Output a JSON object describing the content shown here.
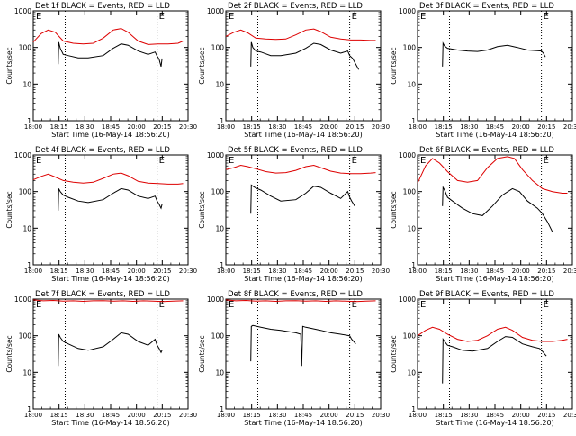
{
  "figure": {
    "start_time_label": "Start Time (16-May-14 18:56:20)",
    "ylabel": "Counts/sec",
    "marker": "E",
    "colors": {
      "events": "#000000",
      "lld": "#dd0000"
    }
  },
  "chart_data": [
    {
      "type": "line",
      "title": "Det 1f BLACK = Events, RED = LLD",
      "yscale": "log",
      "ylim": [
        1,
        1000
      ],
      "x_tick_labels": [
        "18:00",
        "18:15",
        "18:30",
        "18:45",
        "20:00",
        "20:15",
        "20:30"
      ],
      "y_tick_labels": [
        "1",
        "10",
        "100",
        "1000"
      ],
      "x_unit": "minutes after 18:00",
      "xlim": [
        0,
        155
      ],
      "event_lines_x": [
        32,
        124
      ],
      "series": [
        {
          "name": "Events",
          "color": "#000000",
          "x": [
            25,
            25.5,
            27,
            30,
            35,
            45,
            55,
            70,
            80,
            88,
            95,
            105,
            115,
            122,
            124,
            126,
            128,
            129
          ],
          "y": [
            35,
            140,
            95,
            65,
            60,
            52,
            52,
            60,
            95,
            125,
            115,
            80,
            65,
            75,
            58,
            48,
            30,
            50
          ]
        },
        {
          "name": "LLD",
          "color": "#dd0000",
          "x": [
            0,
            8,
            15,
            22,
            30,
            40,
            50,
            60,
            70,
            80,
            88,
            95,
            105,
            115,
            125,
            135,
            145,
            150
          ],
          "y": [
            140,
            240,
            300,
            260,
            150,
            130,
            125,
            130,
            180,
            300,
            330,
            260,
            150,
            120,
            125,
            125,
            130,
            150
          ]
        }
      ]
    },
    {
      "type": "line",
      "title": "Det 2f BLACK = Events, RED = LLD",
      "yscale": "log",
      "ylim": [
        1,
        1000
      ],
      "x_tick_labels": [
        "18:00",
        "18:15",
        "18:30",
        "18:45",
        "20:00",
        "20:15",
        "20:30"
      ],
      "y_tick_labels": [
        "1",
        "10",
        "100",
        "1000"
      ],
      "x_unit": "minutes after 18:00",
      "xlim": [
        0,
        155
      ],
      "event_lines_x": [
        32,
        124
      ],
      "series": [
        {
          "name": "Events",
          "color": "#000000",
          "x": [
            25,
            25.5,
            27,
            30,
            35,
            45,
            55,
            70,
            80,
            88,
            95,
            105,
            115,
            122,
            124,
            127,
            130,
            133
          ],
          "y": [
            30,
            140,
            100,
            80,
            75,
            60,
            60,
            70,
            95,
            130,
            120,
            85,
            70,
            80,
            60,
            50,
            35,
            25
          ]
        },
        {
          "name": "LLD",
          "color": "#dd0000",
          "x": [
            0,
            8,
            15,
            22,
            30,
            40,
            50,
            60,
            70,
            80,
            88,
            95,
            105,
            115,
            125,
            135,
            145,
            150
          ],
          "y": [
            200,
            260,
            300,
            250,
            180,
            170,
            165,
            170,
            220,
            300,
            320,
            270,
            190,
            170,
            160,
            160,
            155,
            155
          ]
        }
      ]
    },
    {
      "type": "line",
      "title": "Det 3f BLACK = Events, RED = LLD",
      "yscale": "log",
      "ylim": [
        1,
        1000
      ],
      "x_tick_labels": [
        "18:00",
        "18:15",
        "18:30",
        "18:45",
        "20:00",
        "20:15",
        "20:30"
      ],
      "y_tick_labels": [
        "1",
        "10",
        "100",
        "1000"
      ],
      "x_unit": "minutes after 18:00",
      "xlim": [
        0,
        155
      ],
      "event_lines_x": [
        32,
        124
      ],
      "series": [
        {
          "name": "Events",
          "color": "#000000",
          "x": [
            25,
            25.5,
            27,
            30,
            40,
            50,
            60,
            70,
            80,
            90,
            100,
            110,
            120,
            124,
            126,
            128
          ],
          "y": [
            30,
            130,
            110,
            95,
            85,
            80,
            78,
            85,
            105,
            115,
            100,
            85,
            82,
            80,
            70,
            55
          ]
        }
      ]
    },
    {
      "type": "line",
      "title": "Det 4f BLACK = Events, RED = LLD",
      "yscale": "log",
      "ylim": [
        1,
        1000
      ],
      "x_tick_labels": [
        "18:00",
        "18:15",
        "18:30",
        "18:45",
        "20:00",
        "20:15",
        "20:30"
      ],
      "y_tick_labels": [
        "1",
        "10",
        "100",
        "1000"
      ],
      "x_unit": "minutes after 18:00",
      "xlim": [
        0,
        155
      ],
      "event_lines_x": [
        32,
        124
      ],
      "series": [
        {
          "name": "Events",
          "color": "#000000",
          "x": [
            25,
            25.5,
            27,
            30,
            35,
            45,
            55,
            70,
            80,
            88,
            95,
            105,
            115,
            122,
            124,
            126,
            128,
            129
          ],
          "y": [
            30,
            120,
            100,
            80,
            70,
            55,
            50,
            60,
            90,
            120,
            110,
            75,
            65,
            75,
            55,
            45,
            35,
            45
          ]
        },
        {
          "name": "LLD",
          "color": "#dd0000",
          "x": [
            0,
            8,
            15,
            22,
            30,
            40,
            50,
            60,
            70,
            80,
            88,
            95,
            105,
            115,
            125,
            135,
            145,
            150
          ],
          "y": [
            210,
            260,
            300,
            250,
            200,
            180,
            170,
            180,
            230,
            300,
            320,
            270,
            190,
            170,
            165,
            160,
            160,
            165
          ]
        }
      ]
    },
    {
      "type": "line",
      "title": "Det 5f BLACK = Events, RED = LLD",
      "yscale": "log",
      "ylim": [
        1,
        1000
      ],
      "x_tick_labels": [
        "18:00",
        "18:15",
        "18:30",
        "18:45",
        "20:00",
        "20:15",
        "20:30"
      ],
      "y_tick_labels": [
        "1",
        "10",
        "100",
        "1000"
      ],
      "x_unit": "minutes after 18:00",
      "xlim": [
        0,
        155
      ],
      "event_lines_x": [
        32,
        124
      ],
      "series": [
        {
          "name": "Events",
          "color": "#000000",
          "x": [
            25,
            25.5,
            27,
            30,
            35,
            45,
            55,
            70,
            80,
            88,
            95,
            105,
            115,
            122,
            124,
            126,
            128,
            129
          ],
          "y": [
            25,
            150,
            140,
            125,
            110,
            75,
            55,
            60,
            90,
            140,
            130,
            90,
            65,
            100,
            70,
            55,
            45,
            40
          ]
        },
        {
          "name": "LLD",
          "color": "#dd0000",
          "x": [
            0,
            8,
            15,
            22,
            30,
            40,
            50,
            60,
            70,
            80,
            88,
            95,
            105,
            115,
            125,
            135,
            145,
            150
          ],
          "y": [
            400,
            450,
            520,
            480,
            420,
            350,
            320,
            330,
            380,
            480,
            520,
            450,
            360,
            320,
            310,
            310,
            320,
            330
          ]
        }
      ]
    },
    {
      "type": "line",
      "title": "Det 6f BLACK = Events, RED = LLD",
      "yscale": "log",
      "ylim": [
        1,
        1000
      ],
      "x_tick_labels": [
        "18:00",
        "18:15",
        "18:30",
        "18:45",
        "20:00",
        "20:15",
        "20:30"
      ],
      "y_tick_labels": [
        "1",
        "10",
        "100",
        "1000"
      ],
      "x_unit": "minutes after 18:00",
      "xlim": [
        0,
        155
      ],
      "event_lines_x": [
        32,
        124
      ],
      "series": [
        {
          "name": "Events",
          "color": "#000000",
          "x": [
            25,
            25.5,
            27,
            30,
            35,
            45,
            55,
            65,
            75,
            85,
            95,
            102,
            110,
            120,
            125,
            130,
            135
          ],
          "y": [
            40,
            130,
            110,
            70,
            55,
            35,
            25,
            22,
            40,
            80,
            120,
            100,
            55,
            35,
            25,
            15,
            8
          ]
        },
        {
          "name": "LLD",
          "color": "#dd0000",
          "x": [
            0,
            8,
            15,
            22,
            30,
            40,
            50,
            60,
            70,
            80,
            90,
            97,
            105,
            115,
            125,
            135,
            145,
            150
          ],
          "y": [
            170,
            500,
            800,
            600,
            350,
            200,
            180,
            200,
            450,
            800,
            900,
            800,
            400,
            200,
            120,
            100,
            90,
            90
          ]
        }
      ]
    },
    {
      "type": "line",
      "title": "Det 7f BLACK = Events, RED = LLD",
      "yscale": "log",
      "ylim": [
        1,
        1000
      ],
      "x_tick_labels": [
        "18:00",
        "18:15",
        "18:30",
        "18:45",
        "20:00",
        "20:15",
        "20:30"
      ],
      "y_tick_labels": [
        "1",
        "10",
        "100",
        "1000"
      ],
      "x_unit": "minutes after 18:00",
      "xlim": [
        0,
        155
      ],
      "event_lines_x": [
        32,
        124
      ],
      "series": [
        {
          "name": "Events",
          "color": "#000000",
          "x": [
            25,
            25.5,
            27,
            30,
            35,
            45,
            55,
            70,
            80,
            88,
            95,
            105,
            115,
            122,
            124,
            126,
            128,
            129
          ],
          "y": [
            15,
            110,
            90,
            70,
            60,
            45,
            40,
            50,
            80,
            120,
            110,
            70,
            55,
            80,
            55,
            45,
            35,
            40
          ]
        },
        {
          "name": "LLD",
          "color": "#dd0000",
          "x": [
            0,
            10,
            20,
            30,
            40,
            50,
            60,
            70,
            80,
            90,
            100,
            110,
            120,
            130,
            140,
            150
          ],
          "y": [
            950,
            900,
            920,
            880,
            900,
            870,
            900,
            910,
            880,
            900,
            870,
            900,
            880,
            860,
            880,
            900
          ]
        }
      ]
    },
    {
      "type": "line",
      "title": "Det 8f BLACK = Events, RED = LLD",
      "yscale": "log",
      "ylim": [
        1,
        1000
      ],
      "x_tick_labels": [
        "18:00",
        "18:15",
        "18:30",
        "18:45",
        "20:00",
        "20:15",
        "20:30"
      ],
      "y_tick_labels": [
        "1",
        "10",
        "100",
        "1000"
      ],
      "x_unit": "minutes after 18:00",
      "xlim": [
        0,
        155
      ],
      "event_lines_x": [
        32,
        124
      ],
      "series": [
        {
          "name": "Events",
          "color": "#000000",
          "x": [
            25,
            25.5,
            27,
            35,
            45,
            55,
            62,
            70,
            75,
            76,
            77,
            80,
            85,
            95,
            105,
            115,
            124,
            126,
            128,
            130
          ],
          "y": [
            20,
            180,
            190,
            170,
            150,
            140,
            130,
            120,
            110,
            15,
            180,
            170,
            160,
            140,
            120,
            110,
            100,
            80,
            70,
            60
          ]
        },
        {
          "name": "LLD",
          "color": "#dd0000",
          "x": [
            0,
            10,
            20,
            30,
            40,
            50,
            60,
            70,
            80,
            90,
            100,
            110,
            120,
            130,
            140,
            150
          ],
          "y": [
            950,
            900,
            920,
            880,
            900,
            870,
            900,
            910,
            880,
            900,
            870,
            900,
            880,
            860,
            880,
            900
          ]
        }
      ]
    },
    {
      "type": "line",
      "title": "Det 9f BLACK = Events, RED = LLD",
      "yscale": "log",
      "ylim": [
        1,
        1000
      ],
      "x_tick_labels": [
        "18:00",
        "18:15",
        "18:30",
        "18:45",
        "20:00",
        "20:15",
        "20:30"
      ],
      "y_tick_labels": [
        "1",
        "10",
        "100",
        "1000"
      ],
      "x_unit": "minutes after 18:00",
      "xlim": [
        0,
        155
      ],
      "event_lines_x": [
        32,
        124
      ],
      "series": [
        {
          "name": "Events",
          "color": "#000000",
          "x": [
            25,
            25.5,
            27,
            30,
            35,
            45,
            55,
            70,
            80,
            88,
            95,
            105,
            115,
            122,
            124,
            126,
            128,
            129
          ],
          "y": [
            5,
            80,
            70,
            55,
            50,
            40,
            38,
            45,
            70,
            95,
            90,
            60,
            50,
            45,
            40,
            35,
            30,
            28
          ]
        },
        {
          "name": "LLD",
          "color": "#dd0000",
          "x": [
            0,
            8,
            15,
            22,
            30,
            40,
            50,
            60,
            70,
            80,
            88,
            95,
            105,
            115,
            125,
            135,
            145,
            150
          ],
          "y": [
            100,
            140,
            170,
            150,
            110,
            80,
            70,
            75,
            100,
            150,
            170,
            140,
            90,
            75,
            70,
            70,
            75,
            80
          ]
        }
      ]
    }
  ]
}
